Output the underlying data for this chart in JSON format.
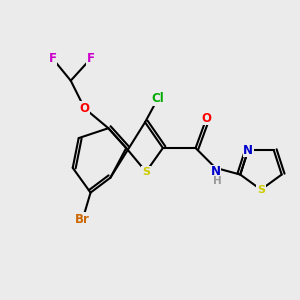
{
  "background_color": "#ebebeb",
  "bond_color": "#000000",
  "lw": 1.5,
  "atom_colors": {
    "F": "#cc00cc",
    "O": "#ff0000",
    "Cl": "#00aa00",
    "S_benzo": "#cccc00",
    "S_thiazole": "#cccc00",
    "Br": "#cc6600",
    "N": "#0000cc",
    "H": "#999999"
  }
}
